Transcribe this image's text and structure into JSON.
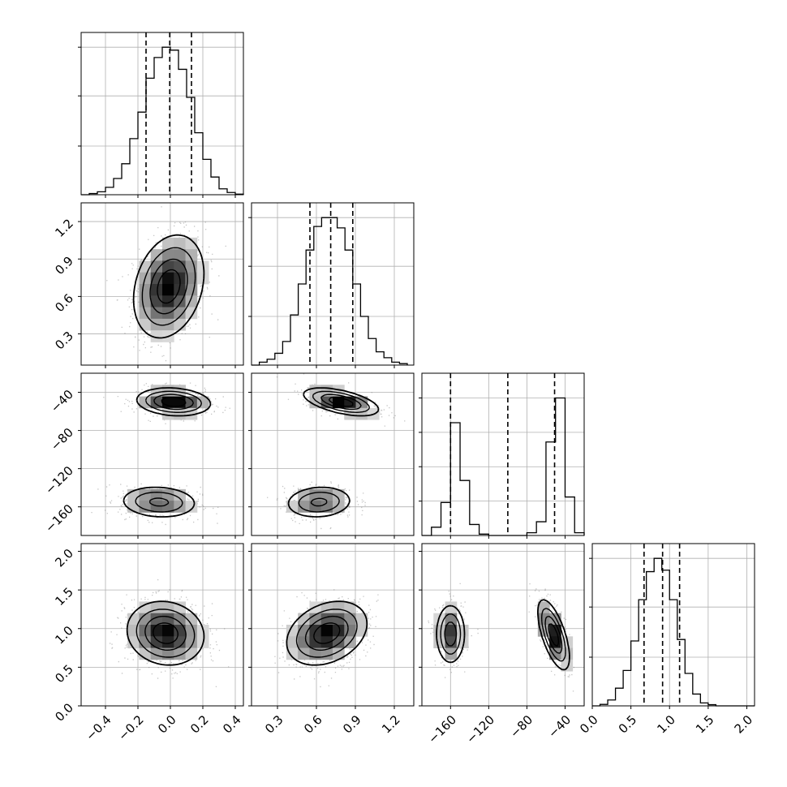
{
  "chart_data": [
    {
      "type": "histogram",
      "panel": "p0",
      "xlim": [
        -0.55,
        0.45
      ],
      "grid": true,
      "quantiles": [
        -0.15,
        -0.004,
        0.13
      ],
      "bins": [
        -0.55,
        -0.5,
        -0.45,
        -0.4,
        -0.35,
        -0.3,
        -0.25,
        -0.2,
        -0.15,
        -0.1,
        -0.05,
        0.0,
        0.05,
        0.1,
        0.15,
        0.2,
        0.25,
        0.3,
        0.35,
        0.4,
        0.45
      ],
      "counts": [
        0.0,
        0.008,
        0.02,
        0.05,
        0.11,
        0.21,
        0.38,
        0.56,
        0.79,
        0.93,
        1.0,
        0.98,
        0.85,
        0.66,
        0.42,
        0.24,
        0.12,
        0.04,
        0.015,
        0.004
      ],
      "yticks": [
        0.33,
        0.67,
        1.0
      ],
      "ymax": 1.1
    },
    {
      "type": "histogram",
      "panel": "p1",
      "xlim": [
        0.1,
        1.35
      ],
      "grid": true,
      "quantiles": [
        0.55,
        0.71,
        0.88
      ],
      "bins": [
        0.1,
        0.16,
        0.22,
        0.28,
        0.34,
        0.4,
        0.46,
        0.52,
        0.58,
        0.64,
        0.7,
        0.76,
        0.82,
        0.88,
        0.94,
        1.0,
        1.06,
        1.12,
        1.18,
        1.24,
        1.3
      ],
      "counts": [
        0.0,
        0.02,
        0.04,
        0.08,
        0.16,
        0.34,
        0.55,
        0.78,
        0.94,
        1.0,
        1.0,
        0.93,
        0.78,
        0.55,
        0.33,
        0.18,
        0.09,
        0.05,
        0.02,
        0.01
      ],
      "yticks": [
        0.33,
        0.67,
        1.0
      ],
      "ymax": 1.1
    },
    {
      "type": "histogram",
      "panel": "p2",
      "xlim": [
        -190,
        -20
      ],
      "grid": true,
      "quantiles": [
        -160,
        -100,
        -51
      ],
      "bins": [
        -190,
        -180,
        -170,
        -160,
        -150,
        -140,
        -130,
        -120,
        -110,
        -100,
        -90,
        -80,
        -70,
        -60,
        -50,
        -40,
        -30,
        -20
      ],
      "counts": [
        0.0,
        0.06,
        0.24,
        0.82,
        0.4,
        0.08,
        0.01,
        0.0,
        0.0,
        0.0,
        0.0,
        0.02,
        0.1,
        0.68,
        1.0,
        0.28,
        0.02
      ],
      "yticks": [
        0.25,
        0.5,
        0.75,
        1.0
      ],
      "ymax": 1.18
    },
    {
      "type": "histogram",
      "panel": "p3",
      "xlim": [
        0.0,
        2.1
      ],
      "grid": true,
      "quantiles": [
        0.67,
        0.91,
        1.13
      ],
      "bins": [
        0.0,
        0.1,
        0.2,
        0.3,
        0.4,
        0.5,
        0.6,
        0.7,
        0.8,
        0.9,
        1.0,
        1.1,
        1.2,
        1.3,
        1.4,
        1.5,
        1.6,
        1.7,
        1.8,
        1.9,
        2.0,
        2.1
      ],
      "counts": [
        0.0,
        0.01,
        0.04,
        0.12,
        0.24,
        0.44,
        0.72,
        0.91,
        1.0,
        0.92,
        0.72,
        0.45,
        0.22,
        0.08,
        0.02,
        0.008,
        0.0,
        0.0,
        0.0,
        0.0,
        0.0
      ],
      "yticks": [
        0.33,
        0.67,
        1.0
      ],
      "ymax": 1.1
    },
    {
      "type": "contour",
      "panel": "p10",
      "xlim": [
        -0.55,
        0.45
      ],
      "ylim": [
        0.05,
        1.35
      ],
      "blobs": [
        {
          "cx": -0.01,
          "cy": 0.68,
          "sx": 0.105,
          "sy": 0.2,
          "rho": 0.25,
          "w": 1.0
        }
      ]
    },
    {
      "type": "contour",
      "panel": "p20",
      "xlim": [
        -0.55,
        0.45
      ],
      "ylim": [
        -190,
        -20
      ],
      "blobs": [
        {
          "cx": 0.02,
          "cy": -50,
          "sx": 0.11,
          "sy": 7,
          "rho": -0.15,
          "w": 0.55
        },
        {
          "cx": -0.07,
          "cy": -155,
          "sx": 0.12,
          "sy": 8.5,
          "rho": -0.1,
          "w": 0.45
        }
      ]
    },
    {
      "type": "contour",
      "panel": "p21",
      "xlim": [
        0.1,
        1.35
      ],
      "ylim": [
        -190,
        -20
      ],
      "blobs": [
        {
          "cx": 0.79,
          "cy": -50,
          "sx": 0.14,
          "sy": 7,
          "rho": -0.55,
          "w": 0.55
        },
        {
          "cx": 0.62,
          "cy": -155,
          "sx": 0.13,
          "sy": 8.5,
          "rho": 0.1,
          "w": 0.45
        }
      ]
    },
    {
      "type": "contour",
      "panel": "p30",
      "xlim": [
        -0.55,
        0.45
      ],
      "ylim": [
        0.0,
        2.1
      ],
      "blobs": [
        {
          "cx": -0.03,
          "cy": 0.94,
          "sx": 0.115,
          "sy": 0.2,
          "rho": -0.1,
          "w": 1.0
        }
      ]
    },
    {
      "type": "contour",
      "panel": "p31",
      "xlim": [
        0.1,
        1.35
      ],
      "ylim": [
        0.0,
        2.1
      ],
      "blobs": [
        {
          "cx": 0.68,
          "cy": 0.94,
          "sx": 0.15,
          "sy": 0.2,
          "rho": 0.3,
          "w": 1.0
        }
      ]
    },
    {
      "type": "contour",
      "panel": "p32",
      "xlim": [
        -190,
        -20
      ],
      "ylim": [
        0.0,
        2.1
      ],
      "blobs": [
        {
          "cx": -160,
          "cy": 0.93,
          "sx": 7.5,
          "sy": 0.19,
          "rho": 0.0,
          "w": 0.45
        },
        {
          "cx": -52,
          "cy": 0.92,
          "sx": 8,
          "sy": 0.22,
          "rho": -0.65,
          "w": 0.55
        }
      ]
    }
  ],
  "axes": {
    "x_ticks": [
      [
        "-0.4",
        "-0.2",
        "0.0",
        "0.2",
        "0.4"
      ],
      [
        "0.3",
        "0.6",
        "0.9",
        "1.2"
      ],
      [
        "-160",
        "-120",
        "-80",
        "-40"
      ],
      [
        "0.0",
        "0.5",
        "1.0",
        "1.5",
        "2.0"
      ]
    ],
    "x_tick_values": [
      [
        -0.4,
        -0.2,
        0.0,
        0.2,
        0.4
      ],
      [
        0.3,
        0.6,
        0.9,
        1.2
      ],
      [
        -160,
        -120,
        -80,
        -40
      ],
      [
        0.0,
        0.5,
        1.0,
        1.5,
        2.0
      ]
    ],
    "y_ticks": [
      [],
      [
        "0.3",
        "0.6",
        "0.9",
        "1.2"
      ],
      [
        "-160",
        "-120",
        "-80",
        "-40"
      ],
      [
        "0.0",
        "0.5",
        "1.0",
        "1.5",
        "2.0"
      ]
    ],
    "y_tick_values": [
      [],
      [
        0.3,
        0.6,
        0.9,
        1.2
      ],
      [
        -160,
        -120,
        -80,
        -40
      ],
      [
        0.0,
        0.5,
        1.0,
        1.5,
        2.0
      ]
    ]
  },
  "colors": {
    "line": "#000000",
    "grid": "#b0b0b0",
    "points": "#7f7f7f"
  }
}
